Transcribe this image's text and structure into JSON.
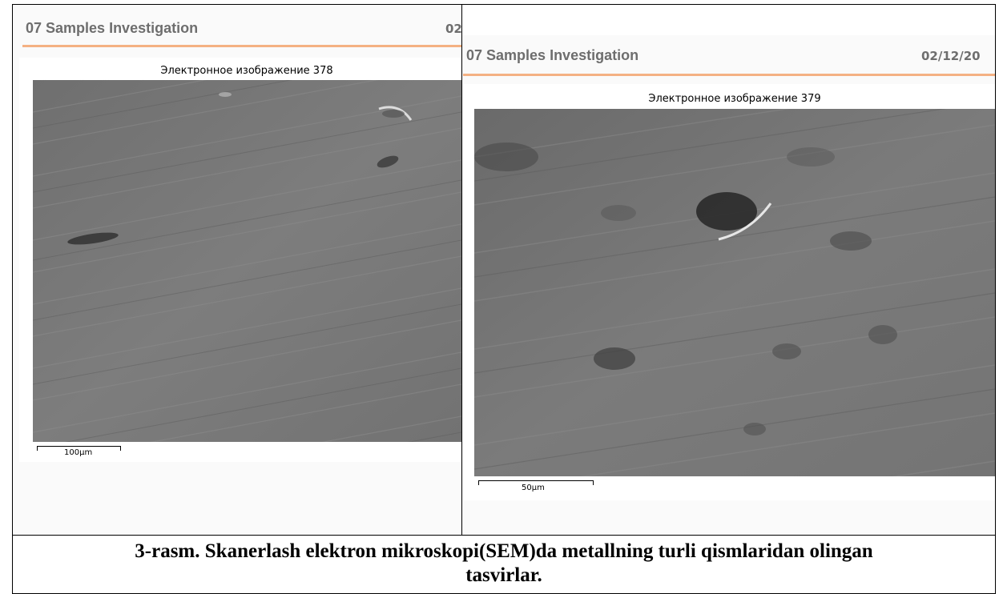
{
  "left_panel": {
    "report_title": "07 Samples Investigation",
    "report_date": "02",
    "image_title": "Электронное изображение 378",
    "scale_label": "100µm"
  },
  "right_panel": {
    "report_title": "07 Samples Investigation",
    "report_date": "02/12/20",
    "image_title": "Электронное изображение 379",
    "scale_label": "50µm"
  },
  "caption": {
    "line1": "3-rasm. Skanerlash elektron mikroskopi(SEM)da metallning turli qismlaridan olingan",
    "line2": "tasvirlar."
  },
  "colors": {
    "accent": "#f4b183",
    "report_text": "#6e6e6e"
  }
}
